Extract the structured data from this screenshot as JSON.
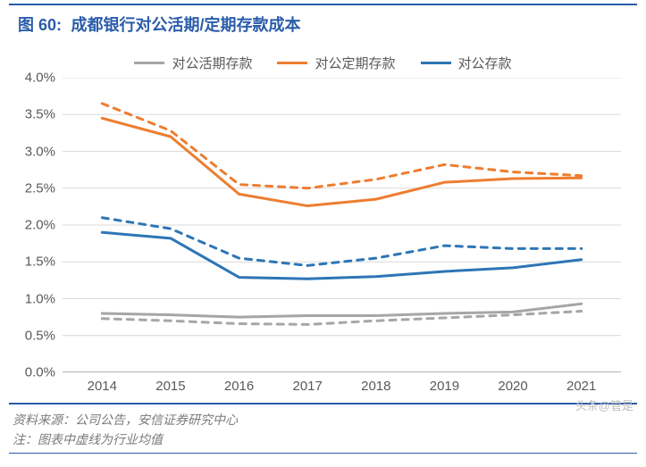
{
  "figure": {
    "number_label": "图 60:",
    "title": "成都银行对公活期/定期存款成本",
    "title_color": "#2a5caa",
    "title_fontsize": 18,
    "border_color": "#2a5caa"
  },
  "legend": {
    "items": [
      {
        "label": "对公活期存款",
        "color": "#a6a6a6"
      },
      {
        "label": "对公定期存款",
        "color": "#ed7d31"
      },
      {
        "label": "对公存款",
        "color": "#2e75b6"
      }
    ],
    "fontsize": 15,
    "text_color": "#595959"
  },
  "chart": {
    "type": "line",
    "x_categories": [
      "2014",
      "2015",
      "2016",
      "2017",
      "2018",
      "2019",
      "2020",
      "2021"
    ],
    "y_axis": {
      "min": 0.0,
      "max": 4.0,
      "tick_step": 0.5,
      "format": "percent_one_decimal"
    },
    "axis_color": "#9c9a9a",
    "grid_color": "#d9d9d9",
    "grid": true,
    "line_width_solid": 3,
    "line_width_dashed": 3,
    "dash_pattern": "7,7",
    "label_fontsize": 15,
    "label_color": "#595959",
    "series": [
      {
        "name": "对公活期存款",
        "color": "#a6a6a6",
        "style": "solid",
        "values": [
          0.8,
          0.78,
          0.75,
          0.77,
          0.77,
          0.8,
          0.82,
          0.93
        ]
      },
      {
        "name": "对公活期存款-行业均值",
        "color": "#a6a6a6",
        "style": "dashed",
        "values": [
          0.73,
          0.7,
          0.66,
          0.65,
          0.7,
          0.74,
          0.78,
          0.83
        ]
      },
      {
        "name": "对公定期存款",
        "color": "#ed7d31",
        "style": "solid",
        "values": [
          3.45,
          3.2,
          2.42,
          2.26,
          2.35,
          2.58,
          2.63,
          2.64
        ]
      },
      {
        "name": "对公定期存款-行业均值",
        "color": "#ed7d31",
        "style": "dashed",
        "values": [
          3.65,
          3.28,
          2.55,
          2.5,
          2.62,
          2.82,
          2.72,
          2.67
        ]
      },
      {
        "name": "对公存款",
        "color": "#2e75b6",
        "style": "solid",
        "values": [
          1.9,
          1.82,
          1.29,
          1.27,
          1.3,
          1.37,
          1.42,
          1.53
        ]
      },
      {
        "name": "对公存款-行业均值",
        "color": "#2e75b6",
        "style": "dashed",
        "values": [
          2.1,
          1.95,
          1.55,
          1.45,
          1.55,
          1.72,
          1.68,
          1.68
        ]
      }
    ]
  },
  "footer": {
    "source_line": "资料来源：公司公告，安信证券研究中心",
    "note_line": "注：图表中虚线为行业均值",
    "color": "#7a7a7a",
    "fontsize": 14
  },
  "watermark": {
    "text": "头条@管是",
    "color": "#bdbdbd"
  }
}
